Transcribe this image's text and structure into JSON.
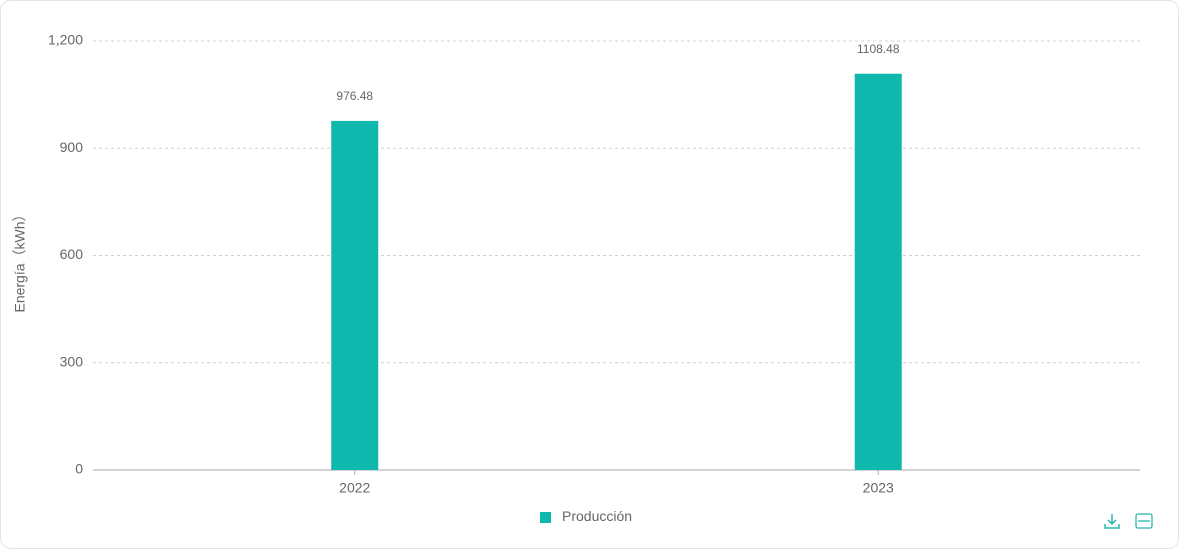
{
  "chart_data": {
    "type": "bar",
    "y_label": "Energía（kWh）",
    "categories": [
      "2022",
      "2023"
    ],
    "series": [
      {
        "name": "Producción",
        "color": "#0fb8ad",
        "values": [
          976.48,
          1108.48
        ]
      }
    ],
    "ylim": [
      0,
      1200
    ],
    "yticks": [
      0,
      300,
      600,
      900,
      {
        "value": 1200,
        "label": "1,200"
      }
    ],
    "grid": true
  }
}
